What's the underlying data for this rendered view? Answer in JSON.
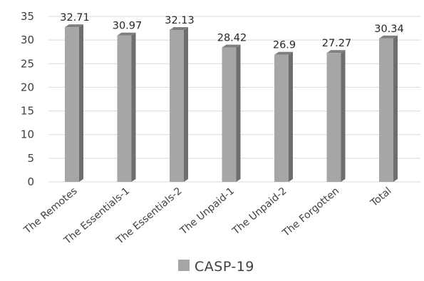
{
  "chart_data": {
    "type": "bar",
    "title": "",
    "xlabel": "",
    "ylabel": "",
    "categories": [
      "The Remotes",
      "The Essentials-1",
      "The Essentials-2",
      "The Unpaid-1",
      "The Unpaid-2",
      "The Forgotten",
      "Total"
    ],
    "series": [
      {
        "name": "CASP-19",
        "values": [
          32.71,
          30.97,
          32.13,
          28.42,
          26.9,
          27.27,
          30.34
        ],
        "value_labels": [
          "32.71",
          "30.97",
          "32.13",
          "28.42",
          "26.9",
          "27.27",
          "30.34"
        ]
      }
    ],
    "ylim": [
      0,
      35
    ],
    "y_ticks": [
      0,
      5,
      10,
      15,
      20,
      25,
      30,
      35
    ],
    "grid": true,
    "legend": "bottom",
    "style": "3d",
    "colors": {
      "bar_front": "#a6a6a6",
      "bar_side": "#6e6e6e",
      "bar_top": "#7f7f7f",
      "grid": "#d9d9d9"
    }
  }
}
